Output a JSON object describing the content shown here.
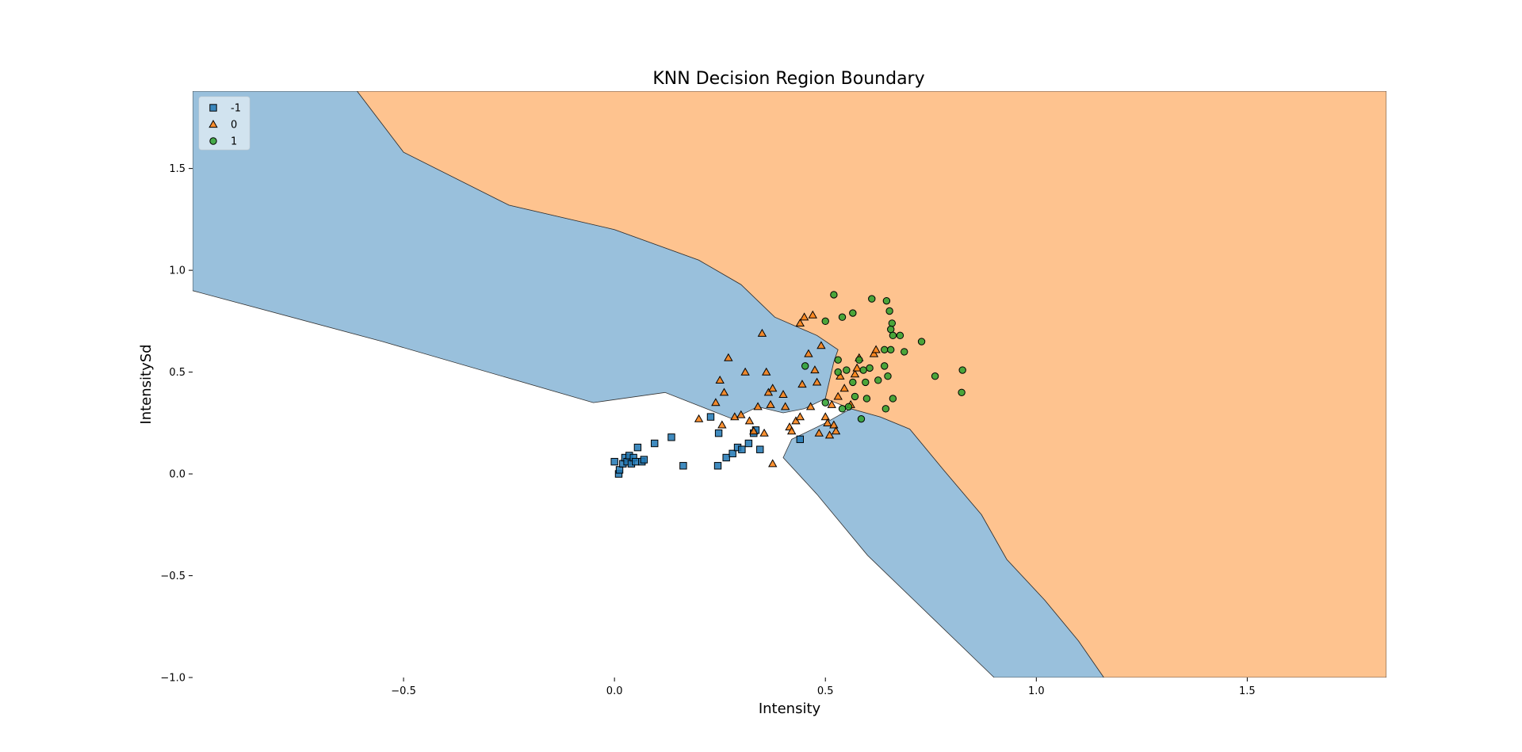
{
  "chart_data": {
    "type": "scatter",
    "title": "KNN Decision Region Boundary",
    "xlabel": "Intensity",
    "ylabel": "IntensitySd",
    "xlim": [
      -1.0,
      1.83
    ],
    "ylim": [
      -1.0,
      1.88
    ],
    "xticks": [
      -0.5,
      0.0,
      0.5,
      1.0,
      1.5
    ],
    "xtick_labels": [
      "−0.5",
      "0.0",
      "0.5",
      "1.0",
      "1.5"
    ],
    "yticks": [
      -1.0,
      -0.5,
      0.0,
      0.5,
      1.0,
      1.5
    ],
    "ytick_labels": [
      "−1.0",
      "−0.5",
      "0.0",
      "0.5",
      "1.0",
      "1.5"
    ],
    "grid": false,
    "legend_position": "top-left",
    "background_region": "1",
    "regions": [
      {
        "class": "-1",
        "color": "#99c0dc",
        "outline": [
          [
            -1.0,
            0.9
          ],
          [
            -0.55,
            0.65
          ],
          [
            -0.05,
            0.35
          ],
          [
            0.12,
            0.4
          ],
          [
            0.28,
            0.27
          ],
          [
            0.34,
            0.33
          ],
          [
            0.4,
            0.3
          ],
          [
            0.45,
            0.32
          ],
          [
            0.5,
            0.37
          ],
          [
            0.52,
            0.55
          ],
          [
            0.53,
            0.61
          ],
          [
            0.48,
            0.68
          ],
          [
            0.38,
            0.77
          ],
          [
            0.3,
            0.93
          ],
          [
            0.2,
            1.05
          ],
          [
            0.0,
            1.2
          ],
          [
            -0.25,
            1.32
          ],
          [
            -0.5,
            1.58
          ],
          [
            -0.61,
            1.88
          ],
          [
            -1.0,
            1.88
          ]
        ]
      },
      {
        "class": "-1",
        "color": "#99c0dc",
        "outline": [
          [
            0.42,
            0.17
          ],
          [
            0.5,
            0.25
          ],
          [
            0.56,
            0.32
          ],
          [
            0.63,
            0.28
          ],
          [
            0.7,
            0.22
          ],
          [
            0.78,
            0.02
          ],
          [
            0.87,
            -0.2
          ],
          [
            0.93,
            -0.42
          ],
          [
            1.02,
            -0.62
          ],
          [
            1.1,
            -0.82
          ],
          [
            1.16,
            -1.0
          ],
          [
            0.9,
            -1.0
          ],
          [
            0.75,
            -0.7
          ],
          [
            0.6,
            -0.4
          ],
          [
            0.48,
            -0.1
          ],
          [
            0.4,
            0.08
          ]
        ]
      },
      {
        "class": "0",
        "color": "#fec38f",
        "outline": [
          [
            -0.61,
            1.88
          ],
          [
            -0.5,
            1.58
          ],
          [
            -0.25,
            1.32
          ],
          [
            0.0,
            1.2
          ],
          [
            0.2,
            1.05
          ],
          [
            0.3,
            0.93
          ],
          [
            0.38,
            0.77
          ],
          [
            0.48,
            0.68
          ],
          [
            0.53,
            0.61
          ],
          [
            0.52,
            0.55
          ],
          [
            0.5,
            0.37
          ],
          [
            0.56,
            0.32
          ],
          [
            0.63,
            0.28
          ],
          [
            0.7,
            0.22
          ],
          [
            0.78,
            0.02
          ],
          [
            0.87,
            -0.2
          ],
          [
            0.93,
            -0.42
          ],
          [
            1.02,
            -0.62
          ],
          [
            1.1,
            -0.82
          ],
          [
            1.16,
            -1.0
          ],
          [
            1.83,
            -1.0
          ],
          [
            1.83,
            1.88
          ]
        ]
      }
    ],
    "series": [
      {
        "name": "-1",
        "marker": "square",
        "color": "#1f77b4",
        "points": [
          [
            0.0,
            0.06
          ],
          [
            0.01,
            0.0
          ],
          [
            0.012,
            0.02
          ],
          [
            0.02,
            0.05
          ],
          [
            0.025,
            0.08
          ],
          [
            0.03,
            0.06
          ],
          [
            0.035,
            0.09
          ],
          [
            0.04,
            0.05
          ],
          [
            0.045,
            0.08
          ],
          [
            0.05,
            0.06
          ],
          [
            0.055,
            0.13
          ],
          [
            0.065,
            0.06
          ],
          [
            0.07,
            0.07
          ],
          [
            0.095,
            0.15
          ],
          [
            0.135,
            0.18
          ],
          [
            0.163,
            0.04
          ],
          [
            0.228,
            0.28
          ],
          [
            0.245,
            0.04
          ],
          [
            0.247,
            0.2
          ],
          [
            0.265,
            0.08
          ],
          [
            0.28,
            0.1
          ],
          [
            0.292,
            0.13
          ],
          [
            0.302,
            0.12
          ],
          [
            0.318,
            0.15
          ],
          [
            0.33,
            0.2
          ],
          [
            0.345,
            0.12
          ],
          [
            0.44,
            0.17
          ],
          [
            0.335,
            0.215
          ]
        ]
      },
      {
        "name": "0",
        "marker": "triangle",
        "color": "#ff7f0e",
        "points": [
          [
            0.2,
            0.27
          ],
          [
            0.24,
            0.35
          ],
          [
            0.25,
            0.46
          ],
          [
            0.26,
            0.4
          ],
          [
            0.27,
            0.57
          ],
          [
            0.255,
            0.24
          ],
          [
            0.285,
            0.28
          ],
          [
            0.3,
            0.29
          ],
          [
            0.31,
            0.5
          ],
          [
            0.32,
            0.26
          ],
          [
            0.33,
            0.21
          ],
          [
            0.34,
            0.33
          ],
          [
            0.35,
            0.69
          ],
          [
            0.355,
            0.2
          ],
          [
            0.36,
            0.5
          ],
          [
            0.365,
            0.4
          ],
          [
            0.37,
            0.34
          ],
          [
            0.375,
            0.42
          ],
          [
            0.375,
            0.05
          ],
          [
            0.4,
            0.39
          ],
          [
            0.405,
            0.33
          ],
          [
            0.415,
            0.23
          ],
          [
            0.42,
            0.21
          ],
          [
            0.43,
            0.26
          ],
          [
            0.44,
            0.28
          ],
          [
            0.445,
            0.44
          ],
          [
            0.45,
            0.77
          ],
          [
            0.44,
            0.74
          ],
          [
            0.46,
            0.59
          ],
          [
            0.465,
            0.33
          ],
          [
            0.47,
            0.78
          ],
          [
            0.475,
            0.51
          ],
          [
            0.48,
            0.45
          ],
          [
            0.485,
            0.2
          ],
          [
            0.49,
            0.63
          ],
          [
            0.5,
            0.28
          ],
          [
            0.505,
            0.25
          ],
          [
            0.51,
            0.19
          ],
          [
            0.515,
            0.34
          ],
          [
            0.52,
            0.24
          ],
          [
            0.525,
            0.21
          ],
          [
            0.53,
            0.38
          ],
          [
            0.535,
            0.48
          ],
          [
            0.545,
            0.42
          ],
          [
            0.56,
            0.34
          ],
          [
            0.57,
            0.49
          ],
          [
            0.575,
            0.52
          ],
          [
            0.58,
            0.57
          ],
          [
            0.615,
            0.59
          ],
          [
            0.62,
            0.61
          ]
        ]
      },
      {
        "name": "1",
        "marker": "circle",
        "color": "#2ca02c",
        "points": [
          [
            0.452,
            0.53
          ],
          [
            0.52,
            0.88
          ],
          [
            0.5,
            0.75
          ],
          [
            0.54,
            0.77
          ],
          [
            0.565,
            0.79
          ],
          [
            0.61,
            0.86
          ],
          [
            0.645,
            0.85
          ],
          [
            0.652,
            0.8
          ],
          [
            0.658,
            0.74
          ],
          [
            0.655,
            0.71
          ],
          [
            0.66,
            0.68
          ],
          [
            0.677,
            0.68
          ],
          [
            0.64,
            0.61
          ],
          [
            0.655,
            0.61
          ],
          [
            0.687,
            0.6
          ],
          [
            0.728,
            0.65
          ],
          [
            0.53,
            0.56
          ],
          [
            0.53,
            0.5
          ],
          [
            0.55,
            0.51
          ],
          [
            0.565,
            0.45
          ],
          [
            0.58,
            0.56
          ],
          [
            0.59,
            0.51
          ],
          [
            0.605,
            0.52
          ],
          [
            0.595,
            0.45
          ],
          [
            0.625,
            0.46
          ],
          [
            0.64,
            0.53
          ],
          [
            0.648,
            0.48
          ],
          [
            0.57,
            0.38
          ],
          [
            0.598,
            0.37
          ],
          [
            0.66,
            0.37
          ],
          [
            0.5,
            0.35
          ],
          [
            0.54,
            0.32
          ],
          [
            0.555,
            0.33
          ],
          [
            0.585,
            0.27
          ],
          [
            0.643,
            0.32
          ],
          [
            0.76,
            0.48
          ],
          [
            0.825,
            0.51
          ],
          [
            0.823,
            0.4
          ]
        ]
      }
    ]
  }
}
